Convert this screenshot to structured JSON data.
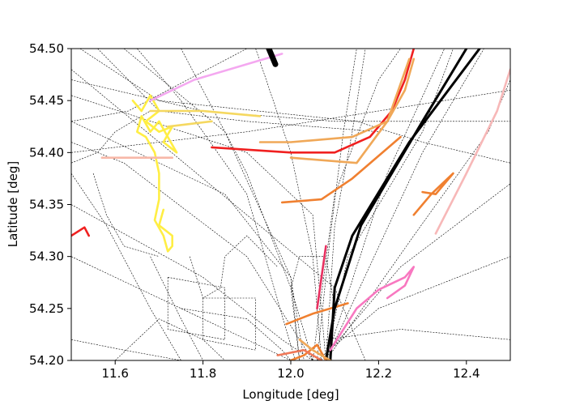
{
  "chart_data": {
    "type": "line",
    "title": "",
    "xlabel": "Longitude [deg]",
    "ylabel": "Latitude [deg]",
    "xlim": [
      11.5,
      12.5
    ],
    "ylim": [
      54.2,
      54.5
    ],
    "xticks": [
      11.6,
      11.8,
      12.0,
      12.2,
      12.4
    ],
    "yticks": [
      54.2,
      54.25,
      54.3,
      54.35,
      54.4,
      54.45,
      54.5
    ],
    "xtick_labels": [
      "11.6",
      "11.8",
      "12.0",
      "12.2",
      "12.4"
    ],
    "ytick_labels": [
      "54.20",
      "54.25",
      "54.30",
      "54.35",
      "54.40",
      "54.45",
      "54.50"
    ],
    "grid": false,
    "legend": "none",
    "background_tracks": [
      [
        [
          11.5,
          54.48
        ],
        [
          12.1,
          54.27
        ],
        [
          12.17,
          54.2
        ]
      ],
      [
        [
          11.5,
          54.455
        ],
        [
          11.9,
          54.4
        ],
        [
          12.05,
          54.34
        ],
        [
          12.08,
          54.2
        ]
      ],
      [
        [
          11.5,
          54.43
        ],
        [
          11.85,
          54.36
        ],
        [
          12.0,
          54.28
        ],
        [
          12.03,
          54.2
        ]
      ],
      [
        [
          11.5,
          54.41
        ],
        [
          11.62,
          54.39
        ],
        [
          11.9,
          54.3
        ],
        [
          12.05,
          54.2
        ]
      ],
      [
        [
          11.5,
          54.38
        ],
        [
          11.58,
          54.33
        ],
        [
          11.68,
          54.25
        ],
        [
          11.75,
          54.2
        ]
      ],
      [
        [
          11.52,
          54.5
        ],
        [
          11.7,
          54.45
        ],
        [
          12.15,
          54.43
        ],
        [
          12.3,
          54.41
        ],
        [
          12.5,
          54.39
        ]
      ],
      [
        [
          11.62,
          54.5
        ],
        [
          11.85,
          54.42
        ],
        [
          12.0,
          54.28
        ],
        [
          12.02,
          54.2
        ]
      ],
      [
        [
          11.75,
          54.5
        ],
        [
          11.9,
          54.38
        ],
        [
          12.0,
          54.27
        ],
        [
          12.05,
          54.2
        ]
      ],
      [
        [
          11.5,
          54.4
        ],
        [
          11.9,
          54.42
        ],
        [
          12.2,
          54.44
        ],
        [
          12.5,
          54.46
        ]
      ],
      [
        [
          11.5,
          54.35
        ],
        [
          11.8,
          54.28
        ],
        [
          11.98,
          54.22
        ],
        [
          12.05,
          54.2
        ]
      ],
      [
        [
          11.5,
          54.3
        ],
        [
          11.7,
          54.26
        ],
        [
          11.9,
          54.22
        ],
        [
          12.0,
          54.2
        ]
      ],
      [
        [
          11.5,
          54.22
        ],
        [
          11.62,
          54.21
        ],
        [
          11.75,
          54.2
        ]
      ],
      [
        [
          12.08,
          54.2
        ],
        [
          12.1,
          54.33
        ],
        [
          12.14,
          54.42
        ],
        [
          12.17,
          54.5
        ]
      ],
      [
        [
          12.06,
          54.2
        ],
        [
          12.09,
          54.32
        ],
        [
          12.12,
          54.42
        ],
        [
          12.15,
          54.5
        ]
      ],
      [
        [
          12.08,
          54.2
        ],
        [
          12.13,
          54.3
        ],
        [
          12.3,
          54.42
        ],
        [
          12.37,
          54.5
        ]
      ],
      [
        [
          12.08,
          54.2
        ],
        [
          12.28,
          54.32
        ],
        [
          12.45,
          54.42
        ],
        [
          12.5,
          54.47
        ]
      ],
      [
        [
          12.07,
          54.2
        ],
        [
          12.25,
          54.29
        ],
        [
          12.5,
          54.37
        ]
      ],
      [
        [
          12.06,
          54.2
        ],
        [
          12.2,
          54.25
        ],
        [
          12.5,
          54.3
        ]
      ],
      [
        [
          12.08,
          54.22
        ],
        [
          12.25,
          54.23
        ],
        [
          12.5,
          54.22
        ]
      ],
      [
        [
          12.08,
          54.2
        ],
        [
          12.22,
          54.38
        ],
        [
          12.35,
          54.5
        ]
      ],
      [
        [
          12.08,
          54.2
        ],
        [
          12.3,
          54.4
        ],
        [
          12.44,
          54.5
        ]
      ],
      [
        [
          12.05,
          54.2
        ],
        [
          12.1,
          54.36
        ],
        [
          12.2,
          54.47
        ],
        [
          12.25,
          54.5
        ]
      ],
      [
        [
          11.6,
          54.2
        ],
        [
          11.7,
          54.24
        ],
        [
          11.8,
          54.22
        ],
        [
          11.85,
          54.2
        ]
      ],
      [
        [
          11.68,
          54.3
        ],
        [
          11.75,
          54.24
        ],
        [
          11.8,
          54.2
        ]
      ],
      [
        [
          11.72,
          54.28
        ],
        [
          11.85,
          54.27
        ],
        [
          11.85,
          54.22
        ],
        [
          11.72,
          54.23
        ],
        [
          11.72,
          54.28
        ]
      ],
      [
        [
          11.8,
          54.26
        ],
        [
          11.92,
          54.26
        ],
        [
          11.92,
          54.21
        ],
        [
          11.8,
          54.22
        ],
        [
          11.8,
          54.26
        ]
      ],
      [
        [
          11.75,
          54.25
        ],
        [
          11.9,
          54.24
        ],
        [
          11.98,
          54.21
        ],
        [
          12.0,
          54.2
        ]
      ],
      [
        [
          11.5,
          54.47
        ],
        [
          11.8,
          54.44
        ],
        [
          12.1,
          54.43
        ],
        [
          12.5,
          54.43
        ]
      ],
      [
        [
          11.56,
          54.5
        ],
        [
          11.7,
          54.44
        ],
        [
          11.9,
          54.43
        ],
        [
          12.2,
          54.42
        ]
      ],
      [
        [
          11.5,
          54.43
        ],
        [
          11.63,
          54.44
        ],
        [
          11.9,
          54.5
        ]
      ],
      [
        [
          11.92,
          54.5
        ],
        [
          12.0,
          54.4
        ],
        [
          12.05,
          54.3
        ],
        [
          12.07,
          54.2
        ]
      ],
      [
        [
          11.65,
          54.5
        ],
        [
          11.75,
          54.45
        ],
        [
          11.9,
          54.36
        ],
        [
          12.01,
          54.2
        ]
      ],
      [
        [
          12.02,
          54.2
        ],
        [
          12.0,
          54.27
        ],
        [
          12.02,
          54.3
        ],
        [
          12.08,
          54.3
        ],
        [
          12.1,
          54.25
        ]
      ],
      [
        [
          11.5,
          54.39
        ],
        [
          11.56,
          54.4
        ],
        [
          11.6,
          54.42
        ],
        [
          11.68,
          54.44
        ]
      ],
      [
        [
          11.55,
          54.38
        ],
        [
          11.58,
          54.34
        ],
        [
          11.62,
          54.31
        ],
        [
          11.7,
          54.3
        ]
      ],
      [
        [
          11.77,
          54.3
        ],
        [
          11.8,
          54.26
        ],
        [
          11.84,
          54.27
        ],
        [
          11.85,
          54.3
        ],
        [
          11.9,
          54.32
        ],
        [
          11.97,
          54.29
        ]
      ]
    ],
    "series": [
      {
        "color": "#ffee44",
        "points": [
          [
            11.64,
            54.45
          ],
          [
            11.66,
            54.44
          ],
          [
            11.68,
            54.455
          ],
          [
            11.7,
            54.44
          ],
          [
            11.67,
            54.43
          ],
          [
            11.7,
            54.42
          ],
          [
            11.73,
            54.425
          ],
          [
            11.71,
            54.41
          ],
          [
            11.74,
            54.4
          ],
          [
            11.72,
            54.415
          ],
          [
            11.7,
            54.43
          ],
          [
            11.68,
            54.42
          ],
          [
            11.66,
            54.435
          ],
          [
            11.65,
            54.42
          ],
          [
            11.67,
            54.415
          ],
          [
            11.69,
            54.4
          ],
          [
            11.7,
            54.38
          ],
          [
            11.7,
            54.355
          ],
          [
            11.69,
            54.335
          ],
          [
            11.71,
            54.32
          ],
          [
            11.72,
            54.305
          ],
          [
            11.73,
            54.31
          ],
          [
            11.73,
            54.32
          ],
          [
            11.7,
            54.33
          ],
          [
            11.71,
            54.345
          ]
        ]
      },
      {
        "color": "#f5d860",
        "points": [
          [
            11.68,
            54.44
          ],
          [
            11.8,
            54.44
          ],
          [
            11.93,
            54.435
          ]
        ]
      },
      {
        "color": "#f5d860",
        "points": [
          [
            11.72,
            54.425
          ],
          [
            11.82,
            54.43
          ]
        ]
      },
      {
        "color": "#f4a8f0",
        "points": [
          [
            11.68,
            54.45
          ],
          [
            11.78,
            54.47
          ],
          [
            11.9,
            54.485
          ],
          [
            11.98,
            54.495
          ]
        ]
      },
      {
        "color": "#000000",
        "points": [
          [
            11.95,
            54.5
          ],
          [
            11.965,
            54.485
          ]
        ]
      },
      {
        "color": "#f7b8a8",
        "points": [
          [
            11.57,
            54.395
          ],
          [
            11.63,
            54.395
          ],
          [
            11.73,
            54.395
          ]
        ]
      },
      {
        "color": "#f02020",
        "points": [
          [
            11.5,
            54.32
          ],
          [
            11.53,
            54.328
          ],
          [
            11.54,
            54.32
          ]
        ]
      },
      {
        "color": "#f02020",
        "points": [
          [
            11.82,
            54.405
          ],
          [
            12.0,
            54.4
          ],
          [
            12.1,
            54.4
          ],
          [
            12.18,
            54.415
          ],
          [
            12.23,
            54.44
          ],
          [
            12.26,
            54.47
          ],
          [
            12.28,
            54.5
          ]
        ]
      },
      {
        "color": "#f0a858",
        "points": [
          [
            11.93,
            54.41
          ],
          [
            12.0,
            54.41
          ],
          [
            12.14,
            54.415
          ],
          [
            12.22,
            54.43
          ],
          [
            12.26,
            54.46
          ],
          [
            12.28,
            54.49
          ]
        ]
      },
      {
        "color": "#f0a858",
        "points": [
          [
            12.0,
            54.395
          ],
          [
            12.15,
            54.39
          ],
          [
            12.22,
            54.43
          ],
          [
            12.27,
            54.49
          ]
        ]
      },
      {
        "color": "#f08030",
        "points": [
          [
            11.98,
            54.352
          ],
          [
            12.07,
            54.355
          ],
          [
            12.14,
            54.375
          ],
          [
            12.25,
            54.415
          ]
        ]
      },
      {
        "color": "#f08030",
        "points": [
          [
            11.99,
            54.235
          ],
          [
            12.05,
            54.245
          ],
          [
            12.13,
            54.255
          ]
        ]
      },
      {
        "color": "#f08030",
        "points": [
          [
            12.28,
            54.34
          ],
          [
            12.32,
            54.36
          ],
          [
            12.37,
            54.38
          ],
          [
            12.33,
            54.36
          ],
          [
            12.3,
            54.362
          ]
        ]
      },
      {
        "color": "#000000",
        "points": [
          [
            12.09,
            54.2
          ],
          [
            12.1,
            54.27
          ],
          [
            12.14,
            54.32
          ],
          [
            12.27,
            54.41
          ],
          [
            12.43,
            54.5
          ]
        ]
      },
      {
        "color": "#000000",
        "points": [
          [
            12.08,
            54.2
          ],
          [
            12.1,
            54.25
          ],
          [
            12.16,
            54.33
          ],
          [
            12.3,
            54.43
          ],
          [
            12.4,
            54.5
          ]
        ]
      },
      {
        "color": "#f7b8b8",
        "points": [
          [
            12.33,
            54.322
          ],
          [
            12.4,
            54.38
          ],
          [
            12.47,
            54.44
          ],
          [
            12.5,
            54.48
          ]
        ]
      },
      {
        "color": "#f878c0",
        "points": [
          [
            12.09,
            54.21
          ],
          [
            12.15,
            54.25
          ],
          [
            12.2,
            54.268
          ],
          [
            12.26,
            54.28
          ],
          [
            12.28,
            54.29
          ],
          [
            12.26,
            54.272
          ],
          [
            12.22,
            54.26
          ]
        ]
      },
      {
        "color": "#e83060",
        "points": [
          [
            12.06,
            54.25
          ],
          [
            12.07,
            54.28
          ],
          [
            12.08,
            54.31
          ]
        ]
      },
      {
        "color": "#f08030",
        "points": [
          [
            12.0,
            54.2
          ],
          [
            12.03,
            54.205
          ],
          [
            12.06,
            54.215
          ],
          [
            12.08,
            54.2
          ]
        ]
      },
      {
        "color": "#f07858",
        "points": [
          [
            11.97,
            54.205
          ],
          [
            12.03,
            54.21
          ],
          [
            12.07,
            54.2
          ]
        ]
      },
      {
        "color": "#f0a858",
        "points": [
          [
            12.02,
            54.22
          ],
          [
            12.05,
            54.21
          ],
          [
            12.09,
            54.2
          ]
        ]
      }
    ]
  }
}
